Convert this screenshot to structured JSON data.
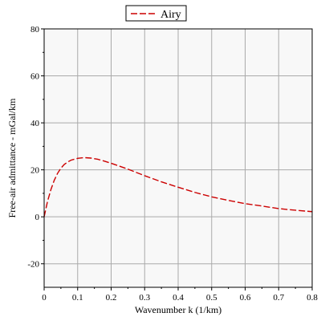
{
  "chart_data": {
    "type": "line",
    "xlabel": "Wavenumber k (1/km)",
    "ylabel": "Free-air admittance - mGal/km",
    "xlim": [
      0,
      0.8
    ],
    "ylim": [
      -30,
      80
    ],
    "x_ticks": [
      "0",
      "0.1",
      "0.2",
      "0.3",
      "0.4",
      "0.5",
      "0.6",
      "0.7",
      "0.8"
    ],
    "y_ticks": [
      "-20",
      "0",
      "20",
      "40",
      "60",
      "80"
    ],
    "grid": true,
    "legend_position": "top-center",
    "colors": {
      "series": "#cc0000",
      "grid": "#aaaaaa",
      "plot_background": "#f8f8f8",
      "frame": "#000000"
    },
    "series": [
      {
        "name": "Airy",
        "line_style": "dashed",
        "x": [
          0,
          0.01,
          0.02,
          0.03,
          0.04,
          0.05,
          0.06,
          0.07,
          0.08,
          0.1,
          0.12,
          0.14,
          0.16,
          0.18,
          0.2,
          0.25,
          0.3,
          0.35,
          0.4,
          0.45,
          0.5,
          0.55,
          0.6,
          0.65,
          0.7,
          0.75,
          0.8
        ],
        "y": [
          0,
          6.5,
          11.5,
          15.5,
          18.5,
          20.7,
          22.3,
          23.3,
          24.1,
          24.9,
          25.2,
          25.0,
          24.5,
          23.7,
          22.8,
          20.3,
          17.5,
          14.9,
          12.6,
          10.4,
          8.5,
          7.0,
          5.6,
          4.6,
          3.5,
          2.8,
          2.2
        ]
      }
    ]
  }
}
